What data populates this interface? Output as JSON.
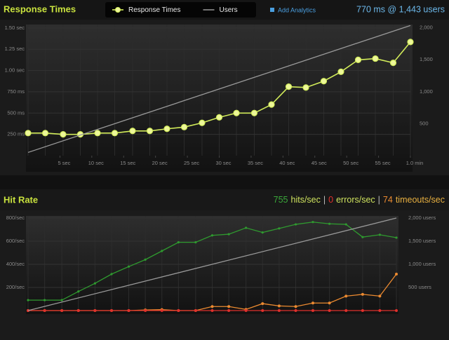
{
  "toolbar": {
    "add_analytics": "Add Analytics"
  },
  "chart_data": [
    {
      "type": "line",
      "title": "Response Times",
      "summary": "770 ms @ 1,443 users",
      "legend": true,
      "x": [
        0,
        2.7,
        5.5,
        8.2,
        10.9,
        13.6,
        16.4,
        19.1,
        21.8,
        24.5,
        27.3,
        30,
        32.7,
        35.5,
        38.2,
        40.9,
        43.6,
        46.4,
        49.1,
        51.8,
        54.5,
        57.3,
        60
      ],
      "xlim": [
        0,
        60
      ],
      "xticks": [
        {
          "value": 5,
          "label": "5 sec"
        },
        {
          "value": 10,
          "label": "10 sec"
        },
        {
          "value": 15,
          "label": "15 sec"
        },
        {
          "value": 20,
          "label": "20 sec"
        },
        {
          "value": 25,
          "label": "25 sec"
        },
        {
          "value": 30,
          "label": "30 sec"
        },
        {
          "value": 35,
          "label": "35 sec"
        },
        {
          "value": 40,
          "label": "40 sec"
        },
        {
          "value": 45,
          "label": "45 sec"
        },
        {
          "value": 50,
          "label": "50 sec"
        },
        {
          "value": 55,
          "label": "55 sec"
        },
        {
          "value": 60,
          "label": "1.0 min"
        }
      ],
      "ylim": [
        0,
        1540
      ],
      "yticks": [
        {
          "value": 250,
          "label": "250 ms"
        },
        {
          "value": 500,
          "label": "500 ms"
        },
        {
          "value": 750,
          "label": "750 ms"
        },
        {
          "value": 1000,
          "label": "1.00 sec"
        },
        {
          "value": 1250,
          "label": "1.25 sec"
        },
        {
          "value": 1500,
          "label": "1.50 sec"
        }
      ],
      "y2lim": [
        0,
        2050
      ],
      "y2ticks": [
        500,
        {
          "value": 1000,
          "label": "1,000"
        },
        {
          "value": 1500,
          "label": "1,500"
        },
        {
          "value": 2000,
          "label": "2,000"
        }
      ],
      "series": [
        {
          "name": "Response Times",
          "color": "#d2ec5a",
          "marker": true,
          "values": [
            265,
            265,
            250,
            250,
            265,
            265,
            290,
            290,
            315,
            335,
            385,
            450,
            500,
            500,
            600,
            810,
            800,
            875,
            985,
            1125,
            1140,
            1090,
            1335
          ]
        },
        {
          "name": "Users",
          "color": "#9a9a9a",
          "axis": "y2",
          "x": [
            0,
            60
          ],
          "values": [
            50,
            2035
          ]
        }
      ]
    },
    {
      "type": "line",
      "title": "Hit Rate",
      "summary": [
        "755",
        "hits/sec",
        "|",
        "0",
        "errors/sec",
        "|",
        "74",
        "timeouts/sec"
      ],
      "summary_colors": [
        "#3aa83a",
        "#cfe35e",
        "#bbbbbb",
        "#e0302c",
        "#cfe35e",
        "#bbbbbb",
        "#ec8a30",
        "#e8b040"
      ],
      "x": [
        0,
        2.7,
        5.5,
        8.2,
        10.9,
        13.6,
        16.4,
        19.1,
        21.8,
        24.5,
        27.3,
        30,
        32.7,
        35.5,
        38.2,
        40.9,
        43.6,
        46.4,
        49.1,
        51.8,
        54.5,
        57.3,
        60
      ],
      "xlim": [
        0,
        60
      ],
      "ylim": [
        0,
        818
      ],
      "yticks": [
        {
          "value": 200,
          "label": "200/sec"
        },
        {
          "value": 400,
          "label": "400/sec"
        },
        {
          "value": 600,
          "label": "600/sec"
        },
        {
          "value": 800,
          "label": "800/sec"
        }
      ],
      "y2lim": [
        0,
        2045
      ],
      "y2ticks": [
        {
          "value": 500,
          "label": "500 users"
        },
        {
          "value": 1000,
          "label": "1,000 users"
        },
        {
          "value": 1500,
          "label": "1,500 users"
        },
        {
          "value": 2000,
          "label": "2,000 users"
        }
      ],
      "series": [
        {
          "color": "#2f9a2f",
          "dot": 1.6,
          "values": [
            90,
            90,
            90,
            165,
            235,
            315,
            380,
            440,
            515,
            590,
            590,
            650,
            660,
            715,
            675,
            710,
            745,
            765,
            750,
            745,
            635,
            655,
            630
          ]
        },
        {
          "color": "#ec8a30",
          "dot": 2,
          "values": [
            0,
            0,
            0,
            0,
            0,
            0,
            0,
            5,
            8,
            0,
            0,
            35,
            35,
            10,
            60,
            40,
            35,
            65,
            65,
            125,
            140,
            125,
            315
          ]
        },
        {
          "color": "#e0302c",
          "dot": 2,
          "values": [
            0,
            0,
            0,
            0,
            0,
            0,
            0,
            0,
            0,
            0,
            0,
            0,
            0,
            0,
            0,
            0,
            0,
            0,
            0,
            0,
            0,
            0,
            0
          ]
        },
        {
          "color": "#9a9a9a",
          "axis": "y2",
          "x": [
            0,
            60
          ],
          "values": [
            0,
            2000
          ]
        }
      ]
    }
  ]
}
